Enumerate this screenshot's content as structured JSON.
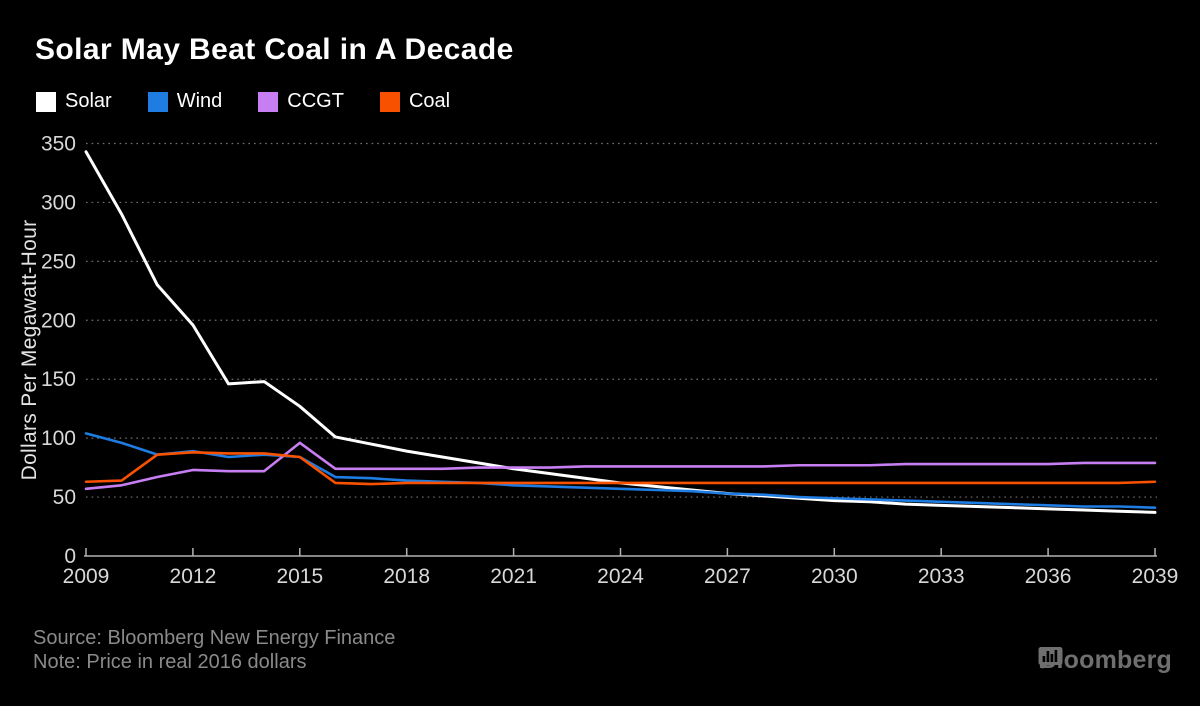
{
  "title": "Solar May Beat Coal in A Decade",
  "legend": [
    {
      "label": "Solar",
      "color": "#ffffff"
    },
    {
      "label": "Wind",
      "color": "#1e7ce2"
    },
    {
      "label": "CCGT",
      "color": "#c77ef2"
    },
    {
      "label": "Coal",
      "color": "#f85200"
    }
  ],
  "footer": {
    "source": "Source: Bloomberg New Energy Finance",
    "note": "Note: Price in real 2016 dollars",
    "brand": "Bloomberg"
  },
  "colors": {
    "background": "#000000",
    "axis": "#b3b3b3",
    "grid": "#8f8f8f",
    "tick_text": "#d8d8d8",
    "footer_text": "#8a8a8a",
    "brand_text": "#6f6f6f"
  },
  "chart_data": {
    "type": "line",
    "title": "Solar May Beat Coal in A Decade",
    "xlabel": "",
    "ylabel": "Dollars Per Megawatt-Hour",
    "xlim": [
      2009,
      2039
    ],
    "ylim": [
      0,
      350
    ],
    "yticks": [
      0,
      50,
      100,
      150,
      200,
      250,
      300,
      350
    ],
    "x_ticks": [
      2009,
      2012,
      2015,
      2018,
      2021,
      2024,
      2027,
      2030,
      2033,
      2036,
      2039
    ],
    "grid": "horizontal-dotted",
    "legend_position": "top-left",
    "x": [
      2009,
      2010,
      2011,
      2012,
      2013,
      2014,
      2015,
      2016,
      2017,
      2018,
      2019,
      2020,
      2021,
      2022,
      2023,
      2024,
      2025,
      2026,
      2027,
      2028,
      2029,
      2030,
      2031,
      2032,
      2033,
      2034,
      2035,
      2036,
      2037,
      2038,
      2039
    ],
    "series": [
      {
        "name": "Solar",
        "color": "#ffffff",
        "values": [
          343,
          290,
          230,
          196,
          146,
          148,
          127,
          101,
          95,
          89,
          84,
          79,
          74,
          70,
          66,
          62,
          59,
          56,
          53,
          51,
          49,
          47,
          46,
          44,
          43,
          42,
          41,
          40,
          39,
          38,
          37
        ]
      },
      {
        "name": "Wind",
        "color": "#1e7ce2",
        "values": [
          104,
          96,
          86,
          89,
          84,
          86,
          84,
          67,
          66,
          64,
          63,
          62,
          60,
          59,
          58,
          57,
          56,
          55,
          53,
          52,
          50,
          49,
          48,
          47,
          46,
          45,
          44,
          43,
          42,
          42,
          41
        ]
      },
      {
        "name": "CCGT",
        "color": "#c77ef2",
        "values": [
          57,
          60,
          67,
          73,
          72,
          72,
          96,
          74,
          74,
          74,
          74,
          75,
          75,
          75,
          76,
          76,
          76,
          76,
          76,
          76,
          77,
          77,
          77,
          78,
          78,
          78,
          78,
          78,
          79,
          79,
          79
        ]
      },
      {
        "name": "Coal",
        "color": "#f85200",
        "values": [
          63,
          64,
          86,
          88,
          87,
          87,
          84,
          62,
          61,
          62,
          62,
          62,
          62,
          62,
          62,
          62,
          62,
          62,
          62,
          62,
          62,
          62,
          62,
          62,
          62,
          62,
          62,
          62,
          62,
          62,
          63
        ]
      }
    ]
  }
}
